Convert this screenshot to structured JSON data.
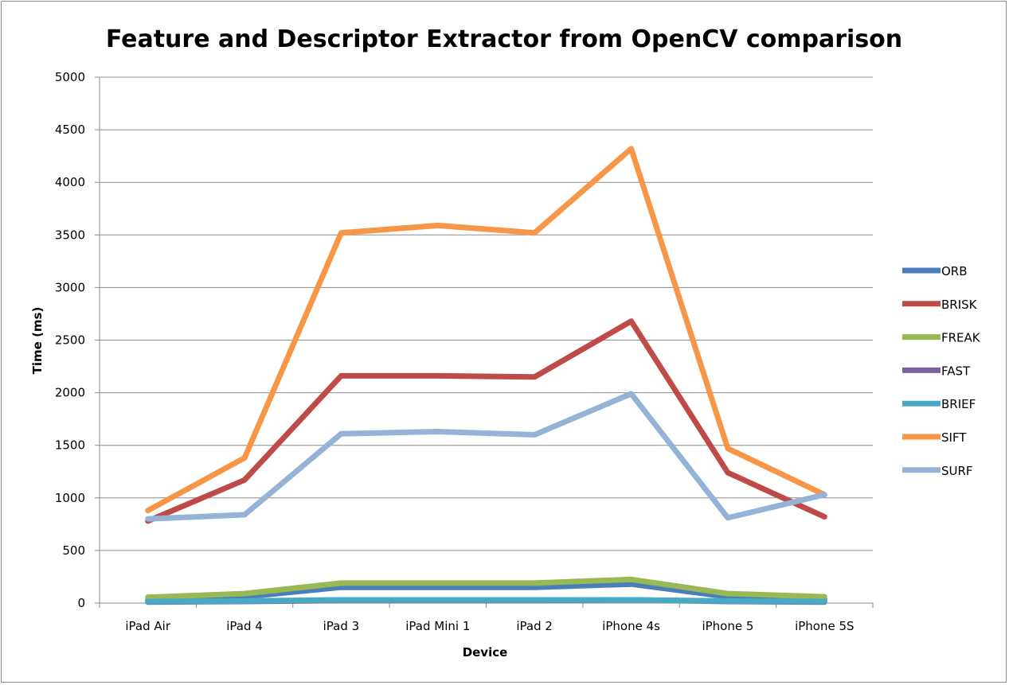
{
  "chart_data": {
    "type": "line",
    "title": "Feature and Descriptor Extractor from OpenCV comparison",
    "xlabel": "Device",
    "ylabel": "Time (ms)",
    "ylim": [
      0,
      5000
    ],
    "yticks": [
      0,
      500,
      1000,
      1500,
      2000,
      2500,
      3000,
      3500,
      4000,
      4500,
      5000
    ],
    "grid": true,
    "legend_position": "right",
    "categories": [
      "iPad Air",
      "iPad 4",
      "iPad 3",
      "iPad Mini 1",
      "iPad 2",
      "iPhone 4s",
      "iPhone 5",
      "iPhone 5S"
    ],
    "series": [
      {
        "name": "ORB",
        "color": "#4a7ebb",
        "values": [
          30,
          60,
          150,
          150,
          150,
          180,
          60,
          40
        ]
      },
      {
        "name": "BRISK",
        "color": "#be4b48",
        "values": [
          780,
          1170,
          2160,
          2160,
          2150,
          2680,
          1240,
          820
        ]
      },
      {
        "name": "FREAK",
        "color": "#98b954",
        "values": [
          55,
          90,
          190,
          190,
          190,
          225,
          90,
          60
        ]
      },
      {
        "name": "FAST",
        "color": "#7d60a0",
        "values": [
          10,
          15,
          25,
          25,
          25,
          30,
          15,
          10
        ]
      },
      {
        "name": "BRIEF",
        "color": "#46aac5",
        "values": [
          15,
          20,
          30,
          30,
          30,
          30,
          20,
          15
        ]
      },
      {
        "name": "SIFT",
        "color": "#f79646",
        "values": [
          880,
          1380,
          3520,
          3590,
          3520,
          4320,
          1470,
          1030
        ]
      },
      {
        "name": "SURF",
        "color": "#95b3d7",
        "values": [
          800,
          840,
          1610,
          1630,
          1600,
          1990,
          810,
          1030
        ]
      }
    ]
  }
}
